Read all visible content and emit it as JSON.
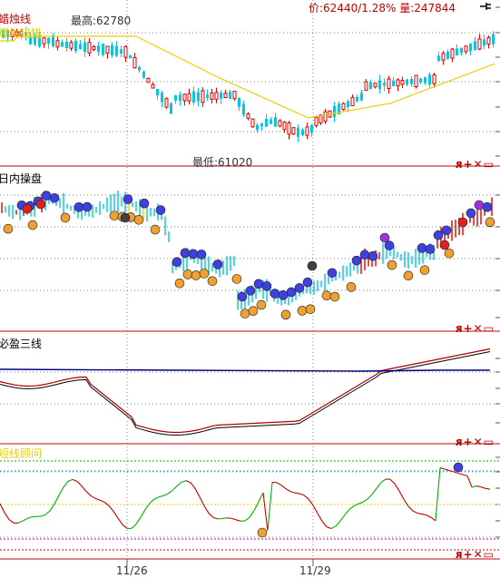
{
  "status": {
    "price_text": "价:62440/1.28%",
    "volume_text": "量:247844"
  },
  "panes": [
    {
      "id": "candle",
      "title": "蜡烛线",
      "subtitle": "爆发猎猎",
      "high_label": "最高:62780",
      "low_label": "最低:61020",
      "controls": "ᴙ+✕▭"
    },
    {
      "id": "intraday",
      "title": "日内操盘",
      "controls": "ᴙ+✕▭"
    },
    {
      "id": "three-lines",
      "title": "必盈三线",
      "controls": "ᴙ+✕▭"
    },
    {
      "id": "oscillator",
      "title": "短线顾问",
      "controls": "ᴙ+✕▭"
    }
  ],
  "dates": [
    "11/26",
    "11/29"
  ],
  "colors": {
    "up": "#e00000",
    "down": "#00c8e0",
    "ma": "#e8d000",
    "red_line": "#b00000",
    "blue_line": "#000080",
    "green": "#00b000"
  }
}
